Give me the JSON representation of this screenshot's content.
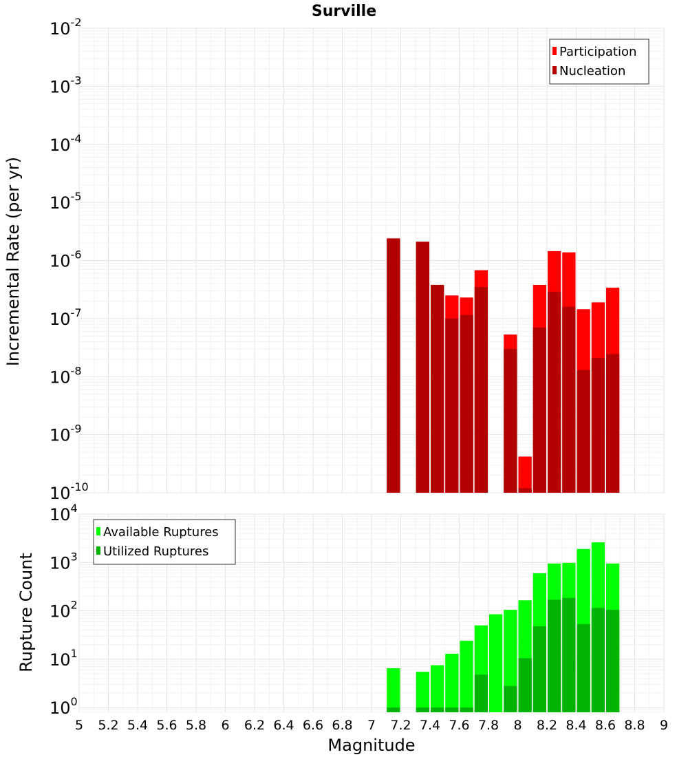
{
  "chart_data": [
    {
      "type": "bar",
      "title": "Surville",
      "ylabel": "Incremental Rate (per yr)",
      "xlabel": "",
      "xlim": [
        5,
        9
      ],
      "ylim": [
        1e-10,
        0.01
      ],
      "yscale": "log",
      "grid": true,
      "legend_position": "top-right",
      "bin_width": 0.1,
      "x": [
        7.15,
        7.35,
        7.45,
        7.55,
        7.65,
        7.75,
        7.95,
        8.05,
        8.15,
        8.25,
        8.35,
        8.45,
        8.55,
        8.65
      ],
      "series": [
        {
          "name": "Participation",
          "color": "#ff0000",
          "values": [
            2.4e-06,
            2.1e-06,
            3.8e-07,
            2.5e-07,
            2.3e-07,
            6.8e-07,
            5.3e-08,
            4.2e-10,
            3.8e-07,
            1.45e-06,
            1.38e-06,
            1.45e-07,
            1.9e-07,
            3.4e-07
          ]
        },
        {
          "name": "Nucleation",
          "color": "#b30000",
          "values": [
            2.4e-06,
            2.1e-06,
            3.8e-07,
            1e-07,
            1.15e-07,
            3.5e-07,
            3e-08,
            1.2e-10,
            7e-08,
            2.9e-07,
            1.6e-07,
            1.3e-08,
            2.1e-08,
            2.45e-08
          ]
        }
      ]
    },
    {
      "type": "bar",
      "title": "",
      "ylabel": "Rupture Count",
      "xlabel": "Magnitude",
      "xlim": [
        5,
        9
      ],
      "ylim": [
        0.8,
        10000
      ],
      "yscale": "log",
      "grid": true,
      "legend_position": "top-left",
      "bin_width": 0.1,
      "x": [
        7.15,
        7.35,
        7.45,
        7.55,
        7.65,
        7.75,
        7.85,
        7.95,
        8.05,
        8.15,
        8.25,
        8.35,
        8.45,
        8.55,
        8.65
      ],
      "series": [
        {
          "name": "Available Ruptures",
          "color": "#00ff00",
          "values": [
            6.5,
            5.5,
            7.5,
            13,
            24,
            50,
            85,
            105,
            165,
            600,
            950,
            980,
            1900,
            2600,
            950
          ]
        },
        {
          "name": "Utilized Ruptures",
          "color": "#00b300",
          "values": [
            1,
            1,
            1,
            1,
            1,
            4.8,
            0,
            2.8,
            10.5,
            48,
            170,
            185,
            53,
            115,
            105
          ]
        }
      ]
    }
  ],
  "x_ticks": [
    "5",
    "5.2",
    "5.4",
    "5.6",
    "5.8",
    "6",
    "6.2",
    "6.4",
    "6.6",
    "6.8",
    "7",
    "7.2",
    "7.4",
    "7.6",
    "7.8",
    "8",
    "8.2",
    "8.4",
    "8.6",
    "8.8",
    "9"
  ],
  "top_y_ticks": [
    {
      "base": "10",
      "exp": "-2"
    },
    {
      "base": "10",
      "exp": "-3"
    },
    {
      "base": "10",
      "exp": "-4"
    },
    {
      "base": "10",
      "exp": "-5"
    },
    {
      "base": "10",
      "exp": "-6"
    },
    {
      "base": "10",
      "exp": "-7"
    },
    {
      "base": "10",
      "exp": "-8"
    },
    {
      "base": "10",
      "exp": "-9"
    },
    {
      "base": "10",
      "exp": "-10"
    }
  ],
  "bottom_y_ticks": [
    {
      "base": "10",
      "exp": "4"
    },
    {
      "base": "10",
      "exp": "3"
    },
    {
      "base": "10",
      "exp": "2"
    },
    {
      "base": "10",
      "exp": "1"
    },
    {
      "base": "10",
      "exp": "0"
    }
  ]
}
